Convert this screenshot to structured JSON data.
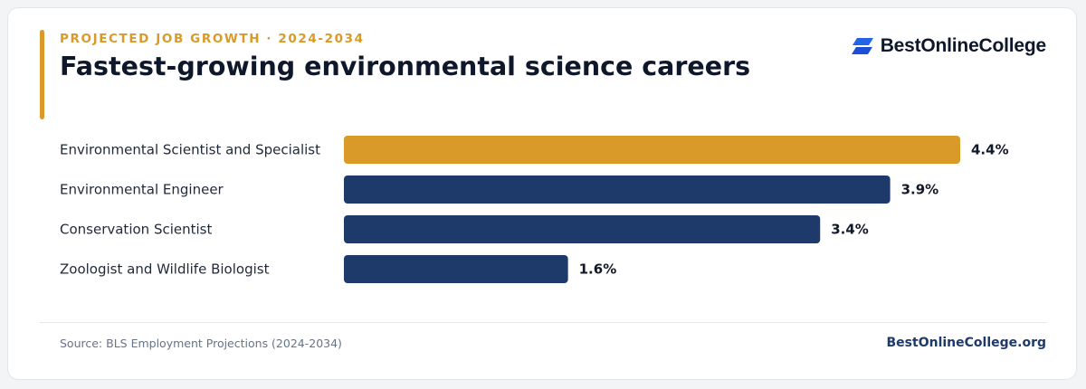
{
  "header": {
    "eyebrow": "PROJECTED JOB GROWTH · 2024-2034",
    "title": "Fastest-growing environmental science careers"
  },
  "brand": {
    "name": "BestOnlineCollege",
    "icon": "brand-logo-icon"
  },
  "colors": {
    "accent": "#d99a29",
    "primary": "#1e3a6b",
    "brand_blue": "#2563eb",
    "text_dark": "#0f172a",
    "muted": "#64748b"
  },
  "chart_data": {
    "type": "bar",
    "orientation": "horizontal",
    "categories": [
      "Environmental Scientist and Specialist",
      "Environmental Engineer",
      "Conservation Scientist",
      "Zoologist and Wildlife Biologist"
    ],
    "values": [
      4.4,
      3.9,
      3.4,
      1.6
    ],
    "value_labels": [
      "4.4%",
      "3.9%",
      "3.4%",
      "1.6%"
    ],
    "highlight_index": 0,
    "xlim": [
      0,
      4.4
    ],
    "grid": false,
    "title": "Fastest-growing environmental science careers"
  },
  "footer": {
    "source": "Source: BLS Employment Projections (2024-2034)",
    "site": "BestOnlineCollege.org"
  }
}
